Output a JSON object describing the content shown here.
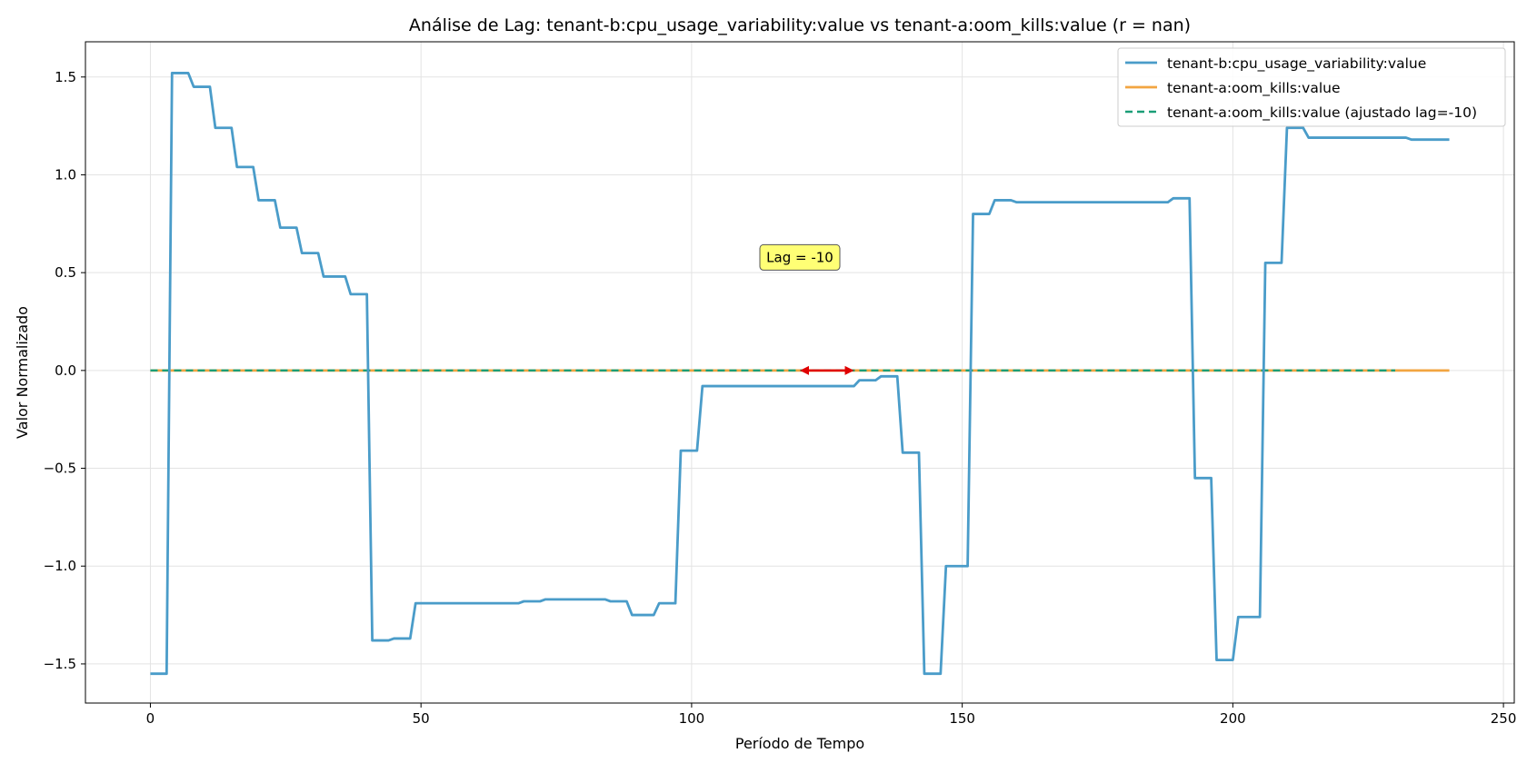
{
  "chart_data": {
    "type": "line",
    "title": "Análise de Lag: tenant-b:cpu_usage_variability:value vs tenant-a:oom_kills:value (r = nan)",
    "xlabel": "Período de Tempo",
    "ylabel": "Valor Normalizado",
    "xlim": [
      -12,
      252
    ],
    "ylim": [
      -1.7,
      1.68
    ],
    "xticks": [
      0,
      50,
      100,
      150,
      200,
      250
    ],
    "xtick_labels": [
      "0",
      "50",
      "100",
      "150",
      "200",
      "250"
    ],
    "yticks": [
      -1.5,
      -1.0,
      -0.5,
      0.0,
      0.5,
      1.0,
      1.5
    ],
    "ytick_labels": [
      "−1.5",
      "−1.0",
      "−0.5",
      "0.0",
      "0.5",
      "1.0",
      "1.5"
    ],
    "grid": true,
    "legend_position": "top-right",
    "series": [
      {
        "name": "tenant-b:cpu_usage_variability:value",
        "color": "#4a9cc9",
        "style": "solid",
        "points": [
          [
            0,
            -1.55
          ],
          [
            3,
            -1.55
          ],
          [
            4,
            1.52
          ],
          [
            7,
            1.52
          ],
          [
            8,
            1.45
          ],
          [
            11,
            1.45
          ],
          [
            12,
            1.24
          ],
          [
            15,
            1.24
          ],
          [
            16,
            1.04
          ],
          [
            19,
            1.04
          ],
          [
            20,
            0.87
          ],
          [
            23,
            0.87
          ],
          [
            24,
            0.73
          ],
          [
            27,
            0.73
          ],
          [
            28,
            0.6
          ],
          [
            31,
            0.6
          ],
          [
            32,
            0.48
          ],
          [
            36,
            0.48
          ],
          [
            37,
            0.39
          ],
          [
            40,
            0.39
          ],
          [
            41,
            -1.38
          ],
          [
            44,
            -1.38
          ],
          [
            45,
            -1.37
          ],
          [
            48,
            -1.37
          ],
          [
            49,
            -1.19
          ],
          [
            52,
            -1.19
          ],
          [
            53,
            -1.19
          ],
          [
            68,
            -1.19
          ],
          [
            69,
            -1.18
          ],
          [
            72,
            -1.18
          ],
          [
            73,
            -1.17
          ],
          [
            84,
            -1.17
          ],
          [
            85,
            -1.18
          ],
          [
            88,
            -1.18
          ],
          [
            89,
            -1.25
          ],
          [
            93,
            -1.25
          ],
          [
            94,
            -1.19
          ],
          [
            97,
            -1.19
          ],
          [
            98,
            -0.41
          ],
          [
            101,
            -0.41
          ],
          [
            102,
            -0.08
          ],
          [
            130,
            -0.08
          ],
          [
            131,
            -0.05
          ],
          [
            134,
            -0.05
          ],
          [
            135,
            -0.03
          ],
          [
            138,
            -0.03
          ],
          [
            139,
            -0.42
          ],
          [
            142,
            -0.42
          ],
          [
            143,
            -1.55
          ],
          [
            146,
            -1.55
          ],
          [
            147,
            -1.0
          ],
          [
            151,
            -1.0
          ],
          [
            152,
            0.8
          ],
          [
            155,
            0.8
          ],
          [
            156,
            0.87
          ],
          [
            159,
            0.87
          ],
          [
            160,
            0.86
          ],
          [
            188,
            0.86
          ],
          [
            189,
            0.88
          ],
          [
            192,
            0.88
          ],
          [
            193,
            -0.55
          ],
          [
            196,
            -0.55
          ],
          [
            197,
            -1.48
          ],
          [
            200,
            -1.48
          ],
          [
            201,
            -1.26
          ],
          [
            205,
            -1.26
          ],
          [
            206,
            0.55
          ],
          [
            209,
            0.55
          ],
          [
            210,
            1.24
          ],
          [
            213,
            1.24
          ],
          [
            214,
            1.19
          ],
          [
            232,
            1.19
          ],
          [
            233,
            1.18
          ],
          [
            240,
            1.18
          ]
        ]
      },
      {
        "name": "tenant-a:oom_kills:value",
        "color": "#f2a541",
        "style": "solid",
        "points": [
          [
            0,
            0.0
          ],
          [
            240,
            0.0
          ]
        ]
      },
      {
        "name": "tenant-a:oom_kills:value (ajustado lag=-10)",
        "color": "#1a9e77",
        "style": "dashed",
        "points": [
          [
            0,
            0.0
          ],
          [
            230,
            0.0
          ]
        ]
      }
    ],
    "annotations": [
      {
        "text": "Lag = -10",
        "x": 120,
        "y": 0.55,
        "box_color": "#ffff6e"
      },
      {
        "type": "double-arrow",
        "x_start": 120,
        "x_end": 130,
        "y": 0.0,
        "color": "#e00000"
      }
    ]
  }
}
